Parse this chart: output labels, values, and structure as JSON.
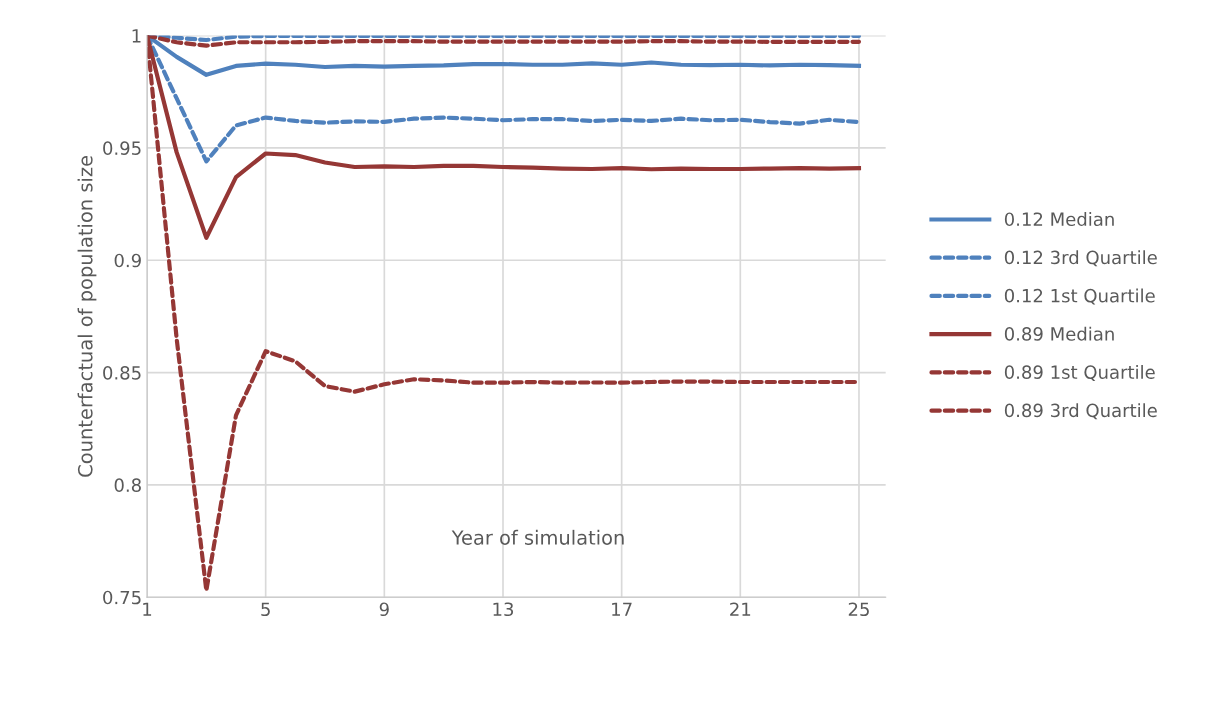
{
  "chart_data": {
    "type": "line",
    "xlabel": "Year of simulation",
    "ylabel": "Counterfactual of population size",
    "x": [
      1,
      2,
      3,
      4,
      5,
      6,
      7,
      8,
      9,
      10,
      11,
      12,
      13,
      14,
      15,
      16,
      17,
      18,
      19,
      20,
      21,
      22,
      23,
      24,
      25
    ],
    "series": [
      {
        "name": "0.12 Median",
        "color": "#4f81bd",
        "line_style": "solid",
        "values": [
          1,
          0.9905,
          0.9825,
          0.9865,
          0.9875,
          0.987,
          0.986,
          0.9865,
          0.9862,
          0.9865,
          0.9867,
          0.9873,
          0.9873,
          0.987,
          0.987,
          0.9876,
          0.987,
          0.988,
          0.987,
          0.9868,
          0.987,
          0.9867,
          0.987,
          0.9868,
          0.9865
        ]
      },
      {
        "name": "0.12 3rd Quartile",
        "color": "#4f81bd",
        "line_style": "dashed",
        "values": [
          1,
          0.999,
          0.998,
          0.9995,
          0.9998,
          0.9998,
          0.9998,
          0.9998,
          0.9998,
          0.9998,
          0.9998,
          0.9998,
          0.9998,
          0.9998,
          0.9998,
          0.9998,
          0.9998,
          0.9998,
          0.9998,
          0.9998,
          0.9998,
          0.9998,
          0.9998,
          0.9998,
          0.9998
        ]
      },
      {
        "name": "0.12 1st Quartile",
        "color": "#4f81bd",
        "line_style": "dashed",
        "values": [
          1,
          0.972,
          0.944,
          0.96,
          0.9635,
          0.962,
          0.9612,
          0.9618,
          0.9616,
          0.963,
          0.9635,
          0.963,
          0.9623,
          0.9628,
          0.9628,
          0.962,
          0.9625,
          0.962,
          0.963,
          0.9623,
          0.9625,
          0.9615,
          0.9608,
          0.9625,
          0.9615
        ]
      },
      {
        "name": "0.89 Median",
        "color": "#953735",
        "line_style": "solid",
        "values": [
          1,
          0.948,
          0.91,
          0.937,
          0.9475,
          0.9468,
          0.9435,
          0.9415,
          0.9418,
          0.9415,
          0.942,
          0.942,
          0.9415,
          0.9412,
          0.9408,
          0.9406,
          0.941,
          0.9405,
          0.9408,
          0.9406,
          0.9406,
          0.9408,
          0.941,
          0.9408,
          0.941
        ]
      },
      {
        "name": "0.89 1st Quartile",
        "color": "#953735",
        "line_style": "dashed",
        "values": [
          1,
          0.997,
          0.9955,
          0.997,
          0.997,
          0.997,
          0.9972,
          0.9975,
          0.9975,
          0.9975,
          0.9973,
          0.9973,
          0.9973,
          0.9973,
          0.9973,
          0.9973,
          0.9973,
          0.9975,
          0.9975,
          0.9973,
          0.9973,
          0.9972,
          0.9972,
          0.9972,
          0.9972
        ]
      },
      {
        "name": "0.89 3rd Quartile",
        "color": "#953735",
        "line_style": "dashed",
        "values": [
          1,
          0.865,
          0.753,
          0.831,
          0.8595,
          0.855,
          0.844,
          0.8415,
          0.8448,
          0.847,
          0.8465,
          0.8455,
          0.8455,
          0.8458,
          0.8455,
          0.8456,
          0.8455,
          0.8458,
          0.846,
          0.846,
          0.8458,
          0.8458,
          0.8458,
          0.8458,
          0.8458
        ]
      }
    ],
    "xlim": [
      1,
      25.9
    ],
    "xticks": [
      1,
      5,
      9,
      13,
      17,
      21,
      25
    ],
    "ylim": [
      0.75,
      1
    ],
    "yticks": [
      0.75,
      0.8,
      0.85,
      0.9,
      0.95,
      1
    ],
    "grid": true,
    "legend": "right",
    "marker": "none"
  }
}
